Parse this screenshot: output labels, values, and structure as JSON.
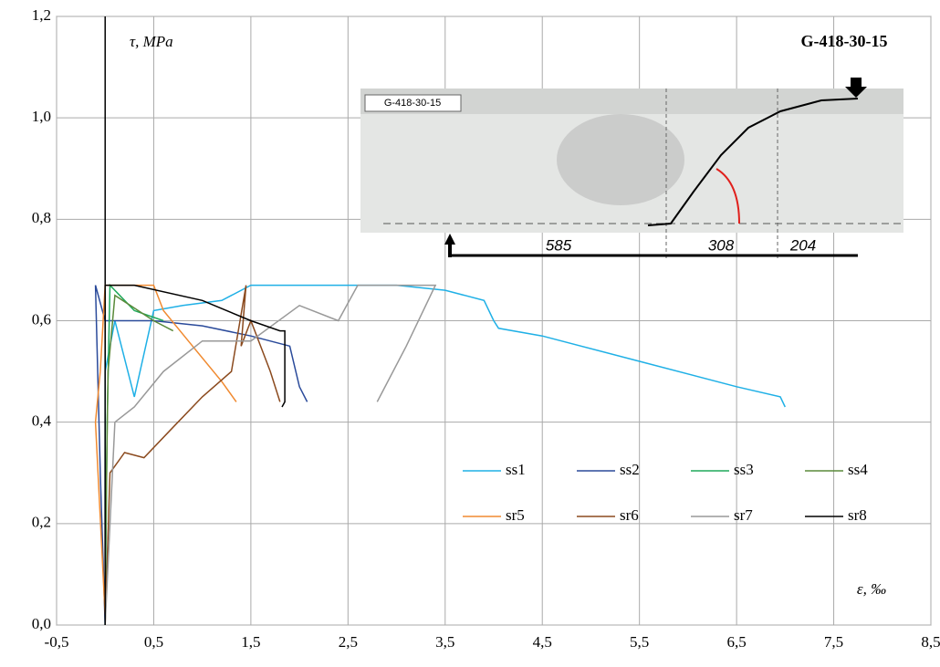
{
  "chart_data": {
    "type": "line",
    "y_label": "τ, MPa",
    "x_label": "ε, ‰",
    "inset_title": "G-418-30-15",
    "inset_label": "G-418-30-15",
    "dimensions": [
      585,
      308,
      204
    ],
    "xlim": [
      -0.5,
      8.5
    ],
    "ylim": [
      0,
      1.2
    ],
    "grid": true,
    "xticks": [
      {
        "value": -0.5,
        "label": "-0,5"
      },
      {
        "value": 0.5,
        "label": "0,5"
      },
      {
        "value": 1.5,
        "label": "1,5"
      },
      {
        "value": 2.5,
        "label": "2,5"
      },
      {
        "value": 3.5,
        "label": "3,5"
      },
      {
        "value": 4.5,
        "label": "4,5"
      },
      {
        "value": 5.5,
        "label": "5,5"
      },
      {
        "value": 6.5,
        "label": "6,5"
      },
      {
        "value": 7.5,
        "label": "7,5"
      },
      {
        "value": 8.5,
        "label": "8,5"
      }
    ],
    "yticks": [
      {
        "value": 0,
        "label": "0,0"
      },
      {
        "value": 0.2,
        "label": "0,2"
      },
      {
        "value": 0.4,
        "label": "0,4"
      },
      {
        "value": 0.6,
        "label": "0,6"
      },
      {
        "value": 0.8,
        "label": "0,8"
      },
      {
        "value": 1.0,
        "label": "1,0"
      },
      {
        "value": 1.2,
        "label": "1,2"
      }
    ],
    "series": [
      {
        "name": "ss1",
        "color": "#1fb0e6",
        "x": [
          0,
          0,
          0.1,
          0.3,
          0.5,
          0.8,
          1.2,
          1.5,
          2.0,
          2.5,
          3.0,
          3.5,
          3.9,
          4.0,
          4.05,
          4.5,
          5.5,
          6.5,
          6.95,
          7.0
        ],
        "values": [
          0,
          0.5,
          0.6,
          0.45,
          0.62,
          0.63,
          0.64,
          0.67,
          0.67,
          0.67,
          0.67,
          0.66,
          0.64,
          0.6,
          0.585,
          0.57,
          0.52,
          0.47,
          0.45,
          0.43
        ]
      },
      {
        "name": "ss2",
        "color": "#2a4a9a",
        "x": [
          0,
          -0.05,
          -0.1,
          0.0,
          0.5,
          1.0,
          1.5,
          1.9,
          2.0,
          2.08
        ],
        "values": [
          0,
          0.3,
          0.67,
          0.6,
          0.6,
          0.59,
          0.57,
          0.55,
          0.47,
          0.44
        ]
      },
      {
        "name": "ss3",
        "color": "#1fa85a",
        "x": [
          0,
          0.02,
          0.05,
          0.3,
          0.6
        ],
        "values": [
          0,
          0.4,
          0.67,
          0.62,
          0.6
        ]
      },
      {
        "name": "ss4",
        "color": "#5a8a3a",
        "x": [
          0,
          0.03,
          0.1,
          0.5,
          0.7
        ],
        "values": [
          0.1,
          0.5,
          0.65,
          0.6,
          0.58
        ]
      },
      {
        "name": "sr5",
        "color": "#f08a30",
        "x": [
          0,
          -0.1,
          -0.05,
          0.0,
          0.5,
          0.6,
          0.9,
          1.2,
          1.35
        ],
        "values": [
          0.02,
          0.4,
          0.5,
          0.67,
          0.67,
          0.62,
          0.55,
          0.48,
          0.44
        ]
      },
      {
        "name": "sr6",
        "color": "#8b4a1e",
        "x": [
          0,
          0.05,
          0.2,
          0.4,
          0.7,
          1.0,
          1.3,
          1.45,
          1.4,
          1.5,
          1.7,
          1.8
        ],
        "values": [
          0,
          0.3,
          0.34,
          0.33,
          0.39,
          0.45,
          0.5,
          0.67,
          0.55,
          0.6,
          0.5,
          0.44
        ]
      },
      {
        "name": "sr7",
        "color": "#999999",
        "x": [
          0,
          0.1,
          0.3,
          0.6,
          1.0,
          1.5,
          2.0,
          2.4,
          2.6,
          3.0,
          3.3,
          3.4,
          3.1,
          2.8
        ],
        "values": [
          0,
          0.4,
          0.43,
          0.5,
          0.56,
          0.56,
          0.63,
          0.6,
          0.67,
          0.67,
          0.67,
          0.67,
          0.55,
          0.44
        ]
      },
      {
        "name": "sr8",
        "color": "#000000",
        "x": [
          0,
          0.0,
          0.3,
          1.0,
          1.5,
          1.8,
          1.85,
          1.85,
          1.82
        ],
        "values": [
          0,
          0.67,
          0.67,
          0.64,
          0.6,
          0.58,
          0.58,
          0.44,
          0.43
        ]
      }
    ]
  }
}
